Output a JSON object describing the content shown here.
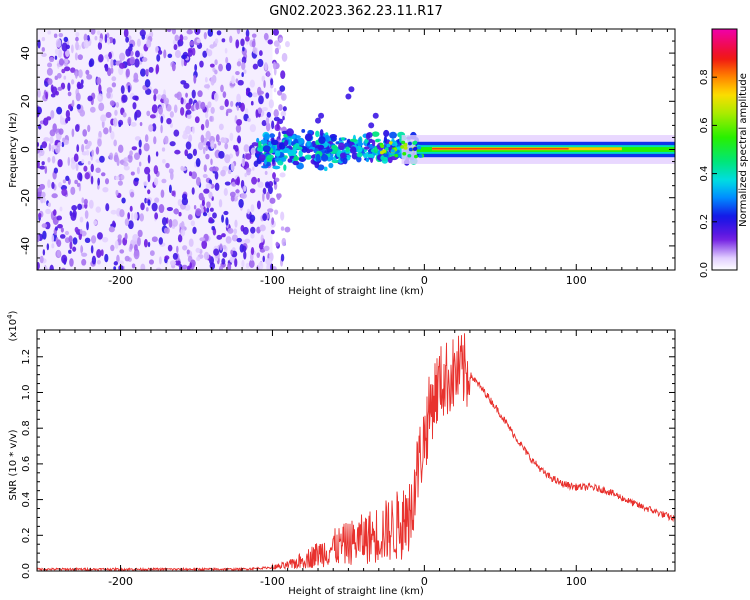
{
  "title": "GN02.2023.362.23.11.R17",
  "colors": {
    "background": "#ffffff",
    "axis": "#000000",
    "snr_line": "#e8322e",
    "spectro_scatter": "#6a1fd8",
    "spectro_fill": "#efe2ff"
  },
  "chart_data": [
    {
      "type": "heatmap",
      "name": "spectrogram",
      "xlabel": "Height of straight line (km)",
      "ylabel": "Frequency (Hz)",
      "xlim": [
        -255,
        165
      ],
      "ylim": [
        -50,
        50
      ],
      "xticks": [
        -200,
        -100,
        0,
        100
      ],
      "yticks": [
        -40,
        -20,
        0,
        20,
        40
      ],
      "xtick_labels": [
        "-200",
        "-100",
        "0",
        "100"
      ],
      "ytick_labels": [
        "-40",
        "-20",
        "0",
        "20",
        "40"
      ],
      "grid": false,
      "regions": [
        {
          "x": [
            -255,
            -100
          ],
          "y": [
            -50,
            50
          ],
          "amplitude": [
            0.0,
            0.2
          ],
          "pattern": "scattered noise"
        },
        {
          "x": [
            -110,
            -5
          ],
          "y": [
            -15,
            15
          ],
          "amplitude": [
            0.1,
            0.5
          ],
          "pattern": "broadband ridge"
        },
        {
          "x": [
            0,
            165
          ],
          "y": [
            -4,
            4
          ],
          "amplitude": [
            0.2,
            0.9
          ],
          "pattern": "narrow line near 0 Hz"
        }
      ],
      "colorbar": {
        "label": "Normalized spectral amplitude",
        "range": [
          0,
          1
        ],
        "ticks": [
          0.0,
          0.2,
          0.4,
          0.6,
          0.8
        ],
        "tick_labels": [
          "0.0",
          "0.2",
          "0.4",
          "0.6",
          "0.8"
        ],
        "colormap": "gist_ncar-like (white-violet-blue-cyan-green-yellow-orange-red-magenta)"
      }
    },
    {
      "type": "line",
      "name": "snr",
      "xlabel": "Height of straight line (km)",
      "ylabel": "SNR (10 * v/v)",
      "y_scale_base": "10",
      "y_scale_exp": "4",
      "xlim": [
        -255,
        165
      ],
      "ylim": [
        0,
        1.35
      ],
      "xticks": [
        -200,
        -100,
        0,
        100
      ],
      "yticks": [
        0.0,
        0.2,
        0.4,
        0.6,
        0.8,
        1.0,
        1.2
      ],
      "xtick_labels": [
        "-200",
        "-100",
        "0",
        "100"
      ],
      "ytick_labels": [
        "0.0",
        "0.2",
        "0.4",
        "0.6",
        "0.8",
        "1.0",
        "1.2"
      ],
      "grid": false,
      "x": [
        -255,
        -200,
        -150,
        -120,
        -100,
        -90,
        -80,
        -60,
        -40,
        -20,
        -10,
        -5,
        0,
        5,
        10,
        15,
        20,
        25,
        30,
        40,
        50,
        60,
        70,
        80,
        90,
        100,
        110,
        120,
        130,
        140,
        150,
        165
      ],
      "y": [
        0.01,
        0.01,
        0.01,
        0.01,
        0.02,
        0.03,
        0.06,
        0.13,
        0.18,
        0.24,
        0.3,
        0.55,
        0.75,
        0.95,
        1.05,
        1.08,
        1.1,
        1.12,
        1.1,
        1.0,
        0.88,
        0.75,
        0.63,
        0.54,
        0.49,
        0.47,
        0.47,
        0.45,
        0.41,
        0.37,
        0.34,
        0.29
      ]
    }
  ]
}
